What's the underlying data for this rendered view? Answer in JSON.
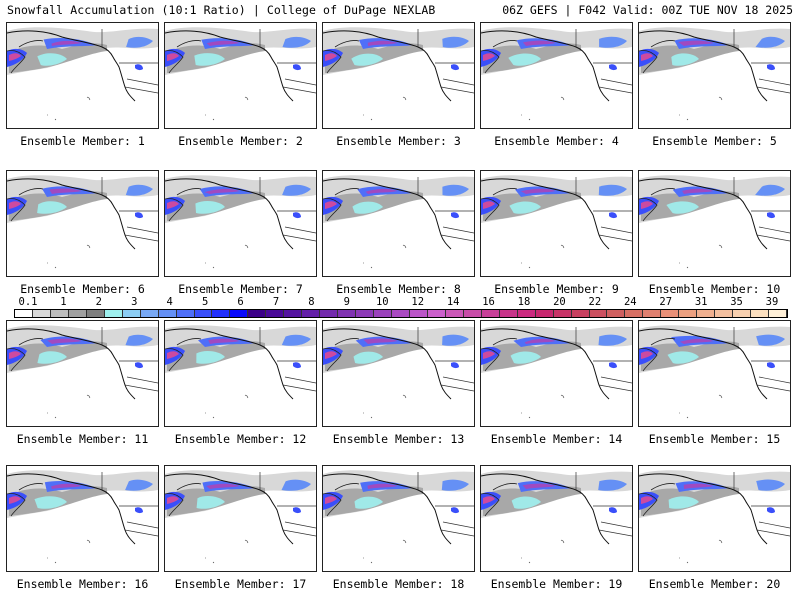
{
  "header": {
    "title_left": "Snowfall Accumulation (10:1 Ratio) | College of DuPage NEXLAB",
    "title_right": "06Z GEFS | F042 Valid: 00Z TUE NOV 18 2025"
  },
  "panels": [
    {
      "label": "Ensemble Member: 1"
    },
    {
      "label": "Ensemble Member: 2"
    },
    {
      "label": "Ensemble Member: 3"
    },
    {
      "label": "Ensemble Member: 4"
    },
    {
      "label": "Ensemble Member: 5"
    },
    {
      "label": "Ensemble Member: 6"
    },
    {
      "label": "Ensemble Member: 7"
    },
    {
      "label": "Ensemble Member: 8"
    },
    {
      "label": "Ensemble Member: 9"
    },
    {
      "label": "Ensemble Member: 10"
    },
    {
      "label": "Ensemble Member: 11"
    },
    {
      "label": "Ensemble Member: 12"
    },
    {
      "label": "Ensemble Member: 13"
    },
    {
      "label": "Ensemble Member: 14"
    },
    {
      "label": "Ensemble Member: 15"
    },
    {
      "label": "Ensemble Member: 16"
    },
    {
      "label": "Ensemble Member: 17"
    },
    {
      "label": "Ensemble Member: 18"
    },
    {
      "label": "Ensemble Member: 19"
    },
    {
      "label": "Ensemble Member: 20"
    }
  ],
  "colorbar": {
    "labels": [
      "0.1",
      "1",
      "2",
      "3",
      "4",
      "5",
      "6",
      "7",
      "8",
      "9",
      "10",
      "12",
      "14",
      "16",
      "18",
      "20",
      "22",
      "24",
      "27",
      "31",
      "35",
      "39"
    ],
    "colors": [
      "#ffffff",
      "#d9d9d9",
      "#bdbdbd",
      "#a0a0a0",
      "#7f7f7f",
      "#9ff0ee",
      "#8ccdf3",
      "#78a8f4",
      "#6590f5",
      "#4f6ff8",
      "#3a4ffa",
      "#2330fb",
      "#0a0afc",
      "#3c0088",
      "#4a0a98",
      "#5514a0",
      "#6420a8",
      "#732aad",
      "#8032b2",
      "#8d3ab7",
      "#9b42bc",
      "#aa4ac2",
      "#bb55c8",
      "#cc60cc",
      "#cc58b8",
      "#c84ca8",
      "#c84099",
      "#c8348a",
      "#cc2a80",
      "#c82870",
      "#c83468",
      "#c84060",
      "#cc5060",
      "#d06060",
      "#d87064",
      "#e08070",
      "#e89078",
      "#eca080",
      "#f0b090",
      "#f4c0a0",
      "#f8d0b0",
      "#fce0c0",
      "#fff0d8"
    ]
  }
}
